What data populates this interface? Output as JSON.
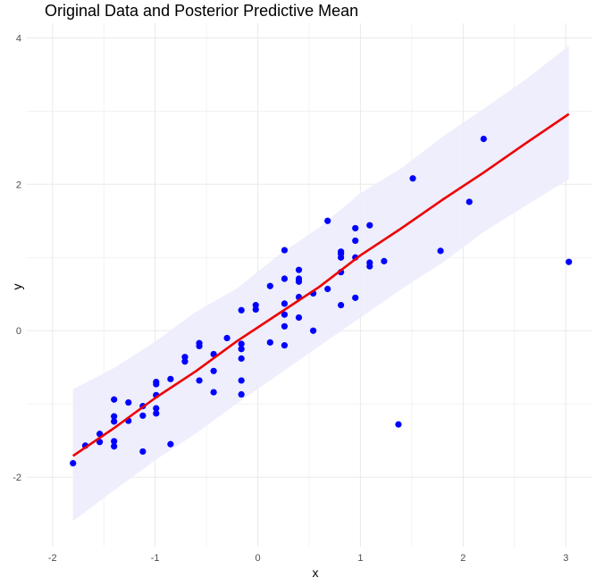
{
  "chart_data": {
    "type": "scatter",
    "title": "Original Data and Posterior Predictive Mean",
    "xlabel": "x",
    "ylabel": "y",
    "xlim": [
      -2.25,
      3.25
    ],
    "ylim": [
      -2.95,
      4.2
    ],
    "x_ticks": [
      -2,
      -1,
      0,
      1,
      2,
      3
    ],
    "y_ticks": [
      -2,
      0,
      2,
      4
    ],
    "grid": true,
    "colors": {
      "points": "#0000ff",
      "line": "#ee0000",
      "band": "#ececfc",
      "grid": "#ebebeb"
    },
    "points": [
      [
        -1.8,
        -1.81
      ],
      [
        -1.68,
        -1.57
      ],
      [
        -1.54,
        -1.41
      ],
      [
        -1.54,
        -1.52
      ],
      [
        -1.4,
        -0.94
      ],
      [
        -1.4,
        -1.17
      ],
      [
        -1.4,
        -1.24
      ],
      [
        -1.4,
        -1.51
      ],
      [
        -1.4,
        -1.58
      ],
      [
        -1.26,
        -0.98
      ],
      [
        -1.26,
        -1.23
      ],
      [
        -1.12,
        -1.03
      ],
      [
        -1.12,
        -1.16
      ],
      [
        -1.12,
        -1.65
      ],
      [
        -0.99,
        -0.7
      ],
      [
        -0.99,
        -0.73
      ],
      [
        -0.99,
        -0.88
      ],
      [
        -0.99,
        -1.06
      ],
      [
        -0.99,
        -1.13
      ],
      [
        -0.85,
        -0.66
      ],
      [
        -0.85,
        -1.55
      ],
      [
        -0.71,
        -0.36
      ],
      [
        -0.71,
        -0.42
      ],
      [
        -0.57,
        -0.17
      ],
      [
        -0.57,
        -0.21
      ],
      [
        -0.57,
        -0.68
      ],
      [
        -0.43,
        -0.32
      ],
      [
        -0.43,
        -0.55
      ],
      [
        -0.43,
        -0.84
      ],
      [
        -0.3,
        -0.1
      ],
      [
        -0.16,
        0.28
      ],
      [
        -0.16,
        -0.18
      ],
      [
        -0.16,
        -0.25
      ],
      [
        -0.16,
        -0.38
      ],
      [
        -0.16,
        -0.68
      ],
      [
        -0.16,
        -0.87
      ],
      [
        -0.02,
        0.35
      ],
      [
        -0.02,
        0.29
      ],
      [
        0.12,
        0.61
      ],
      [
        0.12,
        -0.16
      ],
      [
        0.26,
        1.1
      ],
      [
        0.26,
        0.71
      ],
      [
        0.26,
        0.37
      ],
      [
        0.26,
        0.22
      ],
      [
        0.26,
        0.06
      ],
      [
        0.26,
        -0.2
      ],
      [
        0.4,
        0.83
      ],
      [
        0.4,
        0.71
      ],
      [
        0.4,
        0.67
      ],
      [
        0.4,
        0.46
      ],
      [
        0.4,
        0.18
      ],
      [
        0.54,
        0.51
      ],
      [
        0.54,
        0.0
      ],
      [
        0.68,
        1.5
      ],
      [
        0.68,
        0.57
      ],
      [
        0.81,
        1.08
      ],
      [
        0.81,
        1.05
      ],
      [
        0.81,
        1.0
      ],
      [
        0.81,
        0.8
      ],
      [
        0.81,
        0.35
      ],
      [
        0.95,
        1.4
      ],
      [
        0.95,
        1.23
      ],
      [
        0.95,
        1.0
      ],
      [
        0.95,
        0.45
      ],
      [
        1.09,
        1.44
      ],
      [
        1.09,
        0.93
      ],
      [
        1.09,
        0.88
      ],
      [
        1.23,
        0.95
      ],
      [
        1.37,
        -1.28
      ],
      [
        1.51,
        2.08
      ],
      [
        1.78,
        1.09
      ],
      [
        2.06,
        1.76
      ],
      [
        2.2,
        2.62
      ],
      [
        3.03,
        0.94
      ]
    ],
    "mean_line": [
      [
        -1.8,
        -1.71
      ],
      [
        -1.4,
        -1.33
      ],
      [
        -1.0,
        -0.92
      ],
      [
        -0.6,
        -0.55
      ],
      [
        -0.2,
        -0.14
      ],
      [
        0.2,
        0.23
      ],
      [
        0.6,
        0.6
      ],
      [
        1.0,
        1.03
      ],
      [
        1.4,
        1.4
      ],
      [
        1.8,
        1.79
      ],
      [
        2.2,
        2.16
      ],
      [
        2.6,
        2.55
      ],
      [
        3.03,
        2.96
      ]
    ],
    "band_upper": [
      [
        -1.8,
        -0.8
      ],
      [
        -1.4,
        -0.51
      ],
      [
        -1.0,
        -0.15
      ],
      [
        -0.6,
        0.26
      ],
      [
        -0.2,
        0.58
      ],
      [
        0.2,
        1.03
      ],
      [
        0.6,
        1.41
      ],
      [
        1.0,
        1.88
      ],
      [
        1.4,
        2.22
      ],
      [
        1.8,
        2.65
      ],
      [
        2.2,
        3.03
      ],
      [
        2.6,
        3.42
      ],
      [
        3.03,
        3.89
      ]
    ],
    "band_lower": [
      [
        -1.8,
        -2.6
      ],
      [
        -1.4,
        -2.18
      ],
      [
        -1.0,
        -1.77
      ],
      [
        -0.6,
        -1.4
      ],
      [
        -0.2,
        -0.99
      ],
      [
        0.2,
        -0.6
      ],
      [
        0.6,
        -0.21
      ],
      [
        1.0,
        0.18
      ],
      [
        1.4,
        0.57
      ],
      [
        1.8,
        0.93
      ],
      [
        2.2,
        1.35
      ],
      [
        2.6,
        1.7
      ],
      [
        3.03,
        2.07
      ]
    ]
  }
}
